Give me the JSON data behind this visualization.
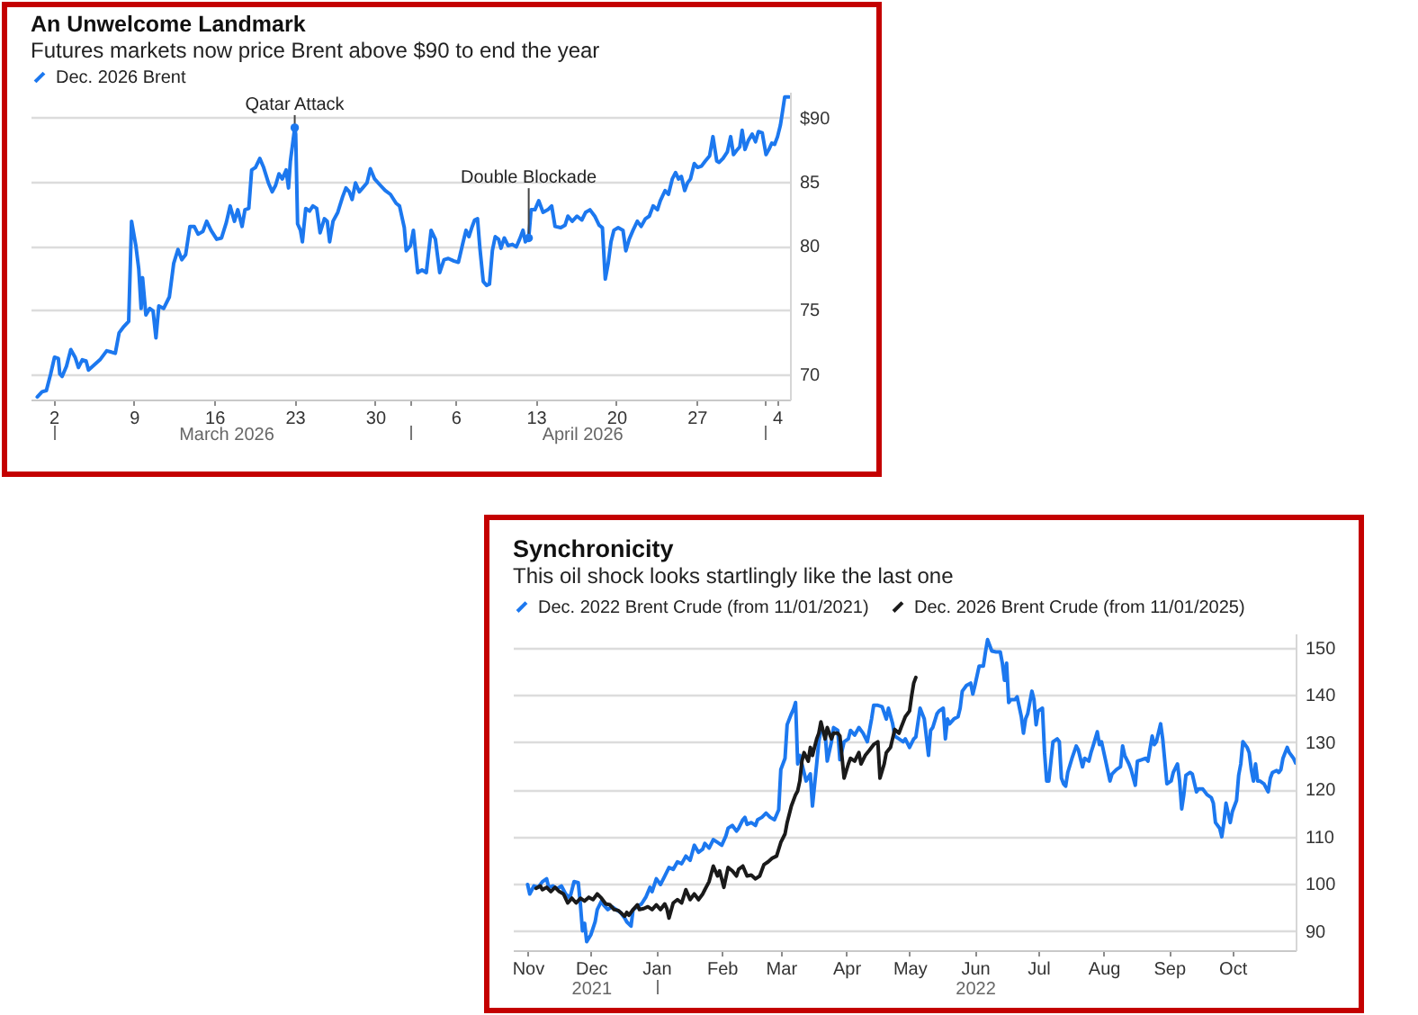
{
  "chart_data": [
    {
      "type": "line",
      "title": "An Unwelcome Landmark",
      "subtitle": "Futures markets now price Brent above $90 to end the year",
      "x": [
        "2026-02-28T14:00",
        "2026-03-01T00:00",
        "2026-03-01T09:00",
        "2026-03-01T18:00",
        "2026-03-02T02:00",
        "2026-03-02T10:00",
        "2026-03-02T13:00",
        "2026-03-02T18:00",
        "2026-03-03T03:00",
        "2026-03-03T12:00",
        "2026-03-03T21:00",
        "2026-03-04T04:00",
        "2026-03-04T12:00",
        "2026-03-04T20:00",
        "2026-03-05T01:00",
        "2026-03-05T13:00",
        "2026-03-06T01:00",
        "2026-03-06T15:00",
        "2026-03-07T01:00",
        "2026-03-07T09:00",
        "2026-03-07T17:00",
        "2026-03-08T03:00",
        "2026-03-08T13:00",
        "2026-03-08T19:00",
        "2026-03-09T04:00",
        "2026-03-09T10:00",
        "2026-03-09T15:00",
        "2026-03-09T18:00",
        "2026-03-10T01:00",
        "2026-03-10T09:00",
        "2026-03-10T16:00",
        "2026-03-10T22:00",
        "2026-03-11T04:00",
        "2026-03-11T14:00",
        "2026-03-12T02:00",
        "2026-03-12T11:00",
        "2026-03-12T20:00",
        "2026-03-13T04:00",
        "2026-03-13T12:00",
        "2026-03-13T21:00",
        "2026-03-14T06:00",
        "2026-03-14T14:00",
        "2026-03-15T00:00",
        "2026-03-15T08:00",
        "2026-03-15T17:00",
        "2026-03-16T05:00",
        "2026-03-16T15:00",
        "2026-03-17T01:00",
        "2026-03-17T09:00",
        "2026-03-17T18:00",
        "2026-03-18T01:00",
        "2026-03-18T10:00",
        "2026-03-18T16:00",
        "2026-03-19T00:00",
        "2026-03-19T06:00",
        "2026-03-19T14:00",
        "2026-03-19T23:00",
        "2026-03-20T07:00",
        "2026-03-20T17:00",
        "2026-03-21T01:00",
        "2026-03-21T08:00",
        "2026-03-21T15:00",
        "2026-03-21T22:00",
        "2026-03-22T06:00",
        "2026-03-22T11:00",
        "2026-03-22T15:00",
        "2026-03-23T00:00",
        "2026-03-23T02:00",
        "2026-03-23T06:00",
        "2026-03-23T12:00",
        "2026-03-23T16:00",
        "2026-03-23T23:00",
        "2026-03-24T07:00",
        "2026-03-24T14:00",
        "2026-03-24T22:00",
        "2026-03-25T05:00",
        "2026-03-25T14:00",
        "2026-03-25T20:00",
        "2026-03-26T01:00",
        "2026-03-26T08:00",
        "2026-03-26T18:00",
        "2026-03-27T04:00",
        "2026-03-27T11:00",
        "2026-03-27T18:00",
        "2026-03-28T00:00",
        "2026-03-28T07:00",
        "2026-03-28T15:00",
        "2026-03-28T22:00",
        "2026-03-29T07:00",
        "2026-03-29T14:00",
        "2026-03-29T23:00",
        "2026-03-30T11:00",
        "2026-03-30T21:00",
        "2026-03-31T08:00",
        "2026-03-31T20:00",
        "2026-04-01T03:00",
        "2026-04-01T13:00",
        "2026-04-01T17:00",
        "2026-04-02T02:00",
        "2026-04-02T08:00",
        "2026-04-02T17:00",
        "2026-04-03T02:00",
        "2026-04-03T11:00",
        "2026-04-03T21:00",
        "2026-04-04T06:00",
        "2026-04-04T15:00",
        "2026-04-05T00:00",
        "2026-04-05T09:00",
        "2026-04-05T21:00",
        "2026-04-06T06:00",
        "2026-04-06T16:00",
        "2026-04-06T22:00",
        "2026-04-07T04:00",
        "2026-04-07T10:00",
        "2026-04-07T16:00",
        "2026-04-07T22:00",
        "2026-04-08T03:00",
        "2026-04-08T10:00",
        "2026-04-08T17:00",
        "2026-04-08T23:00",
        "2026-04-09T05:00",
        "2026-04-09T11:00",
        "2026-04-09T18:00",
        "2026-04-09T23:00",
        "2026-04-10T06:00",
        "2026-04-10T14:00",
        "2026-04-10T23:00",
        "2026-04-11T07:00",
        "2026-04-11T14:00",
        "2026-04-11T21:00",
        "2026-04-12T02:00",
        "2026-04-12T09:00",
        "2026-04-12T14:00",
        "2026-04-12T22:00",
        "2026-04-13T06:00",
        "2026-04-13T15:00",
        "2026-04-14T01:00",
        "2026-04-14T09:00",
        "2026-04-14T16:00",
        "2026-04-15T04:00",
        "2026-04-15T13:00",
        "2026-04-15T19:00",
        "2026-04-16T04:00",
        "2026-04-16T14:00",
        "2026-04-17T00:00",
        "2026-04-17T08:00",
        "2026-04-17T17:00",
        "2026-04-18T03:00",
        "2026-04-18T12:00",
        "2026-04-18T19:00",
        "2026-04-19T01:00",
        "2026-04-19T07:00",
        "2026-04-19T13:00",
        "2026-04-19T19:00",
        "2026-04-20T04:00",
        "2026-04-20T14:00",
        "2026-04-20T20:00",
        "2026-04-21T03:00",
        "2026-04-21T11:00",
        "2026-04-21T20:00",
        "2026-04-22T04:00",
        "2026-04-22T13:00",
        "2026-04-22T21:00",
        "2026-04-23T05:00",
        "2026-04-23T14:00",
        "2026-04-23T20:00",
        "2026-04-24T06:00",
        "2026-04-24T13:00",
        "2026-04-24T21:00",
        "2026-04-25T04:00",
        "2026-04-25T10:00",
        "2026-04-25T16:00",
        "2026-04-25T23:00",
        "2026-04-26T05:00",
        "2026-04-26T11:00",
        "2026-04-26T19:00",
        "2026-04-27T02:00",
        "2026-04-27T10:00",
        "2026-04-27T18:00",
        "2026-04-28T03:00",
        "2026-04-28T10:00",
        "2026-04-28T18:00",
        "2026-04-28T23:00",
        "2026-04-29T07:00",
        "2026-04-29T16:00",
        "2026-04-29T23:00",
        "2026-04-30T05:00",
        "2026-04-30T11:00",
        "2026-04-30T18:00",
        "2026-04-30T23:00",
        "2026-05-01T05:00",
        "2026-05-01T12:00",
        "2026-05-01T20:00",
        "2026-05-02T03:00",
        "2026-05-02T09:00",
        "2026-05-02T17:00",
        "2026-05-03T01:00",
        "2026-05-03T07:00",
        "2026-05-03T13:00",
        "2026-05-03T19:00",
        "2026-05-04T01:00",
        "2026-05-04T07:00",
        "2026-05-04T12:00",
        "2026-05-04T16:00",
        "2026-05-05T01:00"
      ],
      "series": [
        {
          "name": "Dec. 2026 Brent",
          "color": "#1c78ef",
          "values": [
            68.2,
            68.6,
            68.7,
            70.0,
            71.3,
            71.2,
            70.0,
            69.8,
            70.6,
            71.9,
            71.3,
            70.5,
            71.1,
            71.0,
            70.3,
            70.7,
            71.1,
            71.8,
            71.7,
            71.6,
            73.2,
            73.7,
            74.1,
            81.9,
            80.0,
            78.2,
            75.1,
            77.5,
            74.6,
            75.1,
            74.9,
            72.8,
            75.3,
            75.1,
            76.0,
            78.6,
            79.7,
            78.9,
            79.3,
            81.5,
            81.5,
            80.9,
            81.1,
            81.9,
            81.2,
            80.5,
            80.6,
            81.8,
            83.1,
            81.9,
            82.8,
            81.5,
            82.8,
            82.9,
            85.9,
            86.1,
            86.8,
            86.1,
            84.9,
            84.2,
            84.7,
            85.6,
            85.2,
            85.9,
            84.5,
            86.6,
            89.2,
            88.7,
            81.7,
            81.2,
            80.3,
            82.9,
            82.7,
            83.1,
            82.9,
            81.0,
            82.1,
            81.9,
            80.3,
            81.9,
            82.6,
            83.8,
            84.5,
            84.2,
            83.6,
            84.9,
            84.2,
            84.5,
            84.9,
            86.0,
            85.2,
            84.7,
            84.3,
            84.0,
            83.3,
            83.1,
            81.4,
            79.6,
            80.0,
            81.2,
            77.9,
            78.1,
            77.9,
            81.2,
            80.5,
            77.9,
            78.9,
            79.0,
            78.8,
            78.7,
            80.3,
            81.2,
            80.7,
            81.4,
            82.0,
            82.1,
            79.8,
            77.2,
            76.9,
            77.0,
            79.6,
            80.7,
            80.5,
            79.8,
            80.6,
            80.0,
            80.1,
            79.9,
            80.5,
            81.2,
            80.3,
            80.6,
            82.8,
            82.8,
            83.5,
            82.6,
            82.8,
            83.1,
            81.5,
            81.4,
            81.6,
            82.3,
            81.9,
            82.3,
            82.0,
            82.6,
            82.8,
            82.3,
            81.6,
            81.4,
            77.4,
            78.6,
            80.3,
            81.2,
            81.4,
            81.2,
            79.6,
            80.5,
            81.2,
            81.9,
            81.5,
            82.1,
            82.3,
            83.1,
            82.8,
            83.5,
            84.3,
            84.0,
            85.2,
            85.7,
            85.2,
            85.4,
            84.3,
            84.9,
            85.2,
            86.4,
            86.1,
            86.2,
            86.6,
            87.0,
            88.5,
            86.6,
            86.5,
            86.8,
            87.3,
            88.5,
            87.1,
            87.4,
            87.7,
            89.0,
            87.5,
            88.2,
            88.7,
            88.1,
            88.9,
            88.8,
            87.1,
            87.5,
            88.0,
            87.9,
            88.5,
            89.4,
            90.6,
            91.6,
            91.6
          ]
        }
      ],
      "xlim": [
        "2026-02-28T00:00",
        "2026-05-05T03:00"
      ],
      "xticks": [
        {
          "value": "2026-03-02",
          "label": "2"
        },
        {
          "value": "2026-03-09",
          "label": "9"
        },
        {
          "value": "2026-03-16",
          "label": "16"
        },
        {
          "value": "2026-03-23",
          "label": "23"
        },
        {
          "value": "2026-03-30",
          "label": "30"
        },
        {
          "value": "2026-04-06",
          "label": "6"
        },
        {
          "value": "2026-04-13",
          "label": "13"
        },
        {
          "value": "2026-04-20",
          "label": "20"
        },
        {
          "value": "2026-04-27",
          "label": "27"
        },
        {
          "value": "2026-05-04",
          "label": "4"
        }
      ],
      "x2lim": [
        "2026-02-28T00:00",
        "2026-05-05T03:00"
      ],
      "x2ticks": [
        {
          "value": "2026-03-02",
          "label": null
        },
        {
          "value": "2026-03-17",
          "label": "March 2026"
        },
        {
          "value": "2026-04-02",
          "label": null
        },
        {
          "value": "2026-04-17",
          "label": "April 2026"
        },
        {
          "value": "2026-05-03",
          "label": null
        }
      ],
      "ylim": [
        68,
        92
      ],
      "yticks": [
        70,
        75,
        80,
        85,
        {
          "value": 90,
          "label": "$90"
        }
      ],
      "grid": "y",
      "legend": "top left",
      "annotations": [
        {
          "text": "Qatar Attack",
          "x": "2026-03-23T00:00",
          "y": 89.2
        },
        {
          "text": "Double Blockade",
          "x": "2026-04-12T09:00",
          "y": 80.6
        }
      ]
    },
    {
      "type": "line",
      "title": "Synchronicity",
      "subtitle": "This oil shock looks startlingly like the last one",
      "series": [
        {
          "name": "Dec. 2022 Brent Crude (from 11/01/2021)",
          "color": "#1c78ef",
          "x": [
            "2021-11-01",
            "2021-11-02",
            "2021-11-04",
            "2021-11-06",
            "2021-11-08",
            "2021-11-10",
            "2021-11-11",
            "2021-11-13",
            "2021-11-15",
            "2021-11-17",
            "2021-11-19",
            "2021-11-21",
            "2021-11-23",
            "2021-11-25",
            "2021-11-26",
            "2021-11-27",
            "2021-11-28",
            "2021-11-29",
            "2021-12-01",
            "2021-12-03",
            "2021-12-04",
            "2021-12-06",
            "2021-12-07",
            "2021-12-09",
            "2021-12-11",
            "2021-12-13",
            "2021-12-15",
            "2021-12-17",
            "2021-12-18",
            "2021-12-20",
            "2021-12-21",
            "2021-12-23",
            "2021-12-25",
            "2021-12-27",
            "2021-12-29",
            "2021-12-30",
            "2022-01-01",
            "2022-01-03",
            "2022-01-05",
            "2022-01-07",
            "2022-01-09",
            "2022-01-11",
            "2022-01-13",
            "2022-01-15",
            "2022-01-17",
            "2022-01-19",
            "2022-01-21",
            "2022-01-23",
            "2022-01-24",
            "2022-01-26",
            "2022-01-28",
            "2022-01-30",
            "2022-02-01",
            "2022-02-03",
            "2022-02-04",
            "2022-02-06",
            "2022-02-08",
            "2022-02-09",
            "2022-02-11",
            "2022-02-12",
            "2022-02-13",
            "2022-02-15",
            "2022-02-17",
            "2022-02-18",
            "2022-02-20",
            "2022-02-22",
            "2022-02-24",
            "2022-02-26",
            "2022-02-28",
            "2022-03-01",
            "2022-03-03",
            "2022-03-04",
            "2022-03-06",
            "2022-03-07",
            "2022-03-08",
            "2022-03-09",
            "2022-03-10",
            "2022-03-12",
            "2022-03-13",
            "2022-03-15",
            "2022-03-16",
            "2022-03-18",
            "2022-03-19",
            "2022-03-20",
            "2022-03-22",
            "2022-03-23",
            "2022-03-25",
            "2022-03-26",
            "2022-03-28",
            "2022-03-29",
            "2022-03-31",
            "2022-04-02",
            "2022-04-03",
            "2022-04-05",
            "2022-04-07",
            "2022-04-09",
            "2022-04-11",
            "2022-04-13",
            "2022-04-14",
            "2022-04-16",
            "2022-04-18",
            "2022-04-20",
            "2022-04-21",
            "2022-04-23",
            "2022-04-24",
            "2022-04-26",
            "2022-04-28",
            "2022-04-29",
            "2022-05-01",
            "2022-05-03",
            "2022-05-04",
            "2022-05-06",
            "2022-05-08",
            "2022-05-09",
            "2022-05-10",
            "2022-05-11",
            "2022-05-12",
            "2022-05-14",
            "2022-05-15",
            "2022-05-17",
            "2022-05-18",
            "2022-05-19",
            "2022-05-20",
            "2022-05-22",
            "2022-05-24",
            "2022-05-25",
            "2022-05-26",
            "2022-05-28",
            "2022-05-30",
            "2022-05-31",
            "2022-06-01",
            "2022-06-03",
            "2022-06-05",
            "2022-06-06",
            "2022-06-07",
            "2022-06-09",
            "2022-06-11",
            "2022-06-13",
            "2022-06-14",
            "2022-06-15",
            "2022-06-16",
            "2022-06-17",
            "2022-06-18",
            "2022-06-20",
            "2022-06-21",
            "2022-06-23",
            "2022-06-24",
            "2022-06-25",
            "2022-06-26",
            "2022-06-28",
            "2022-06-29",
            "2022-06-30",
            "2022-07-01",
            "2022-07-03",
            "2022-07-04",
            "2022-07-05",
            "2022-07-06",
            "2022-07-08",
            "2022-07-10",
            "2022-07-11",
            "2022-07-12",
            "2022-07-13",
            "2022-07-14",
            "2022-07-15",
            "2022-07-17",
            "2022-07-19",
            "2022-07-20",
            "2022-07-22",
            "2022-07-23",
            "2022-07-25",
            "2022-07-26",
            "2022-07-27",
            "2022-07-29",
            "2022-07-30",
            "2022-07-31",
            "2022-08-02",
            "2022-08-04",
            "2022-08-05",
            "2022-08-07",
            "2022-08-09",
            "2022-08-10",
            "2022-08-11",
            "2022-08-13",
            "2022-08-14",
            "2022-08-16",
            "2022-08-17",
            "2022-08-19",
            "2022-08-21",
            "2022-08-22",
            "2022-08-24",
            "2022-08-25",
            "2022-08-26",
            "2022-08-28",
            "2022-08-29",
            "2022-08-31",
            "2022-09-02",
            "2022-09-03",
            "2022-09-05",
            "2022-09-06",
            "2022-09-07",
            "2022-09-08",
            "2022-09-09",
            "2022-09-11",
            "2022-09-12",
            "2022-09-14",
            "2022-09-15",
            "2022-09-17",
            "2022-09-19",
            "2022-09-21",
            "2022-09-22",
            "2022-09-23",
            "2022-09-25",
            "2022-09-26",
            "2022-09-27",
            "2022-09-28",
            "2022-09-30",
            "2022-10-01",
            "2022-10-03",
            "2022-10-04",
            "2022-10-05",
            "2022-10-06",
            "2022-10-08",
            "2022-10-09",
            "2022-10-10",
            "2022-10-11",
            "2022-10-12",
            "2022-10-13",
            "2022-10-14",
            "2022-10-16",
            "2022-10-18",
            "2022-10-19",
            "2022-10-20",
            "2022-10-22",
            "2022-10-23",
            "2022-10-24",
            "2022-10-25",
            "2022-10-27",
            "2022-10-28",
            "2022-10-30",
            "2022-10-31"
          ],
          "values": [
            99.9,
            97.9,
            99.6,
            99.3,
            100.5,
            101.1,
            99.3,
            99.6,
            99.0,
            99.6,
            97.9,
            97.0,
            100.5,
            100.3,
            95.8,
            90.1,
            91.7,
            87.8,
            89.3,
            92.0,
            94.6,
            96.4,
            95.6,
            94.6,
            95.2,
            94.6,
            94.0,
            92.8,
            92.0,
            91.1,
            94.6,
            95.2,
            95.8,
            97.2,
            99.3,
            98.4,
            101.1,
            99.9,
            101.7,
            103.5,
            103.1,
            104.7,
            104.3,
            105.9,
            105.0,
            108.2,
            106.7,
            107.4,
            108.6,
            107.6,
            109.4,
            108.8,
            108.2,
            110.2,
            111.8,
            112.4,
            111.2,
            111.8,
            113.6,
            114.1,
            112.6,
            113.0,
            112.4,
            113.6,
            114.1,
            115.0,
            114.1,
            113.6,
            115.7,
            124.2,
            126.6,
            133.7,
            136.0,
            137.0,
            138.4,
            125.4,
            127.2,
            123.6,
            121.8,
            123.3,
            116.5,
            125.4,
            130.1,
            132.5,
            131.9,
            126.0,
            130.1,
            133.1,
            132.5,
            126.3,
            130.1,
            130.7,
            132.5,
            131.5,
            133.1,
            131.9,
            130.1,
            134.9,
            137.8,
            137.8,
            137.5,
            134.9,
            137.2,
            133.9,
            131.3,
            130.7,
            130.1,
            130.7,
            128.9,
            130.7,
            131.1,
            137.2,
            134.9,
            131.1,
            127.2,
            132.5,
            133.1,
            136.0,
            136.6,
            137.2,
            130.7,
            134.9,
            133.9,
            134.9,
            135.4,
            137.2,
            140.8,
            142.0,
            142.5,
            140.2,
            142.0,
            146.1,
            146.1,
            149.1,
            151.7,
            149.3,
            149.1,
            149.1,
            146.7,
            143.1,
            146.7,
            138.4,
            139.0,
            139.0,
            139.6,
            135.4,
            131.9,
            134.9,
            136.0,
            140.8,
            139.0,
            133.7,
            136.6,
            137.2,
            127.8,
            121.8,
            121.8,
            130.1,
            130.7,
            130.1,
            122.4,
            121.2,
            120.7,
            123.6,
            126.6,
            129.2,
            128.4,
            124.8,
            126.6,
            126.0,
            127.8,
            129.2,
            132.2,
            129.5,
            130.1,
            126.0,
            121.8,
            123.3,
            124.2,
            124.8,
            129.2,
            127.2,
            125.4,
            124.2,
            120.9,
            126.0,
            126.3,
            126.6,
            126.0,
            131.3,
            129.5,
            130.1,
            133.9,
            130.7,
            121.2,
            121.8,
            123.6,
            125.4,
            121.8,
            115.9,
            118.9,
            123.0,
            123.6,
            123.3,
            119.5,
            120.1,
            120.1,
            118.9,
            118.3,
            117.1,
            113.0,
            111.8,
            110.0,
            113.0,
            117.1,
            113.0,
            115.3,
            117.7,
            123.0,
            125.4,
            130.1,
            128.9,
            127.8,
            124.2,
            121.8,
            125.4,
            121.8,
            121.8,
            121.2,
            119.5,
            122.4,
            123.6,
            124.0,
            123.6,
            124.2,
            126.6,
            128.9,
            127.8,
            126.6,
            125.6
          ]
        },
        {
          "name": "Dec. 2026 Brent Crude (from 11/01/2025)",
          "color": "#1a1a1a",
          "x": [
            "2021-11-05",
            "2021-11-07",
            "2021-11-08",
            "2021-11-10",
            "2021-11-12",
            "2021-11-14",
            "2021-11-16",
            "2021-11-18",
            "2021-11-20",
            "2021-11-22",
            "2021-11-24",
            "2021-11-26",
            "2021-11-28",
            "2021-11-30",
            "2021-12-02",
            "2021-12-04",
            "2021-12-06",
            "2021-12-08",
            "2021-12-10",
            "2021-12-12",
            "2021-12-14",
            "2021-12-17",
            "2021-12-18",
            "2021-12-19",
            "2021-12-21",
            "2021-12-23",
            "2021-12-24",
            "2021-12-26",
            "2021-12-28",
            "2021-12-30",
            "2022-01-01",
            "2022-01-03",
            "2022-01-05",
            "2022-01-06",
            "2022-01-07",
            "2022-01-09",
            "2022-01-11",
            "2022-01-13",
            "2022-01-15",
            "2022-01-17",
            "2022-01-19",
            "2022-01-21",
            "2022-01-23",
            "2022-01-24",
            "2022-01-26",
            "2022-01-28",
            "2022-01-30",
            "2022-01-31",
            "2022-02-02",
            "2022-02-04",
            "2022-02-06",
            "2022-02-08",
            "2022-02-09",
            "2022-02-11",
            "2022-02-13",
            "2022-02-15",
            "2022-02-17",
            "2022-02-19",
            "2022-02-21",
            "2022-02-23",
            "2022-02-25",
            "2022-02-27",
            "2022-03-01",
            "2022-03-03",
            "2022-03-04",
            "2022-03-06",
            "2022-03-08",
            "2022-03-09",
            "2022-03-10",
            "2022-03-11",
            "2022-03-12",
            "2022-03-14",
            "2022-03-15",
            "2022-03-16",
            "2022-03-18",
            "2022-03-19",
            "2022-03-20",
            "2022-03-22",
            "2022-03-23",
            "2022-03-25",
            "2022-03-26",
            "2022-03-28",
            "2022-03-29",
            "2022-03-31",
            "2022-04-02",
            "2022-04-03",
            "2022-04-05",
            "2022-04-07",
            "2022-04-08",
            "2022-04-10",
            "2022-04-12",
            "2022-04-14",
            "2022-04-16",
            "2022-04-17",
            "2022-04-19",
            "2022-04-20",
            "2022-04-22",
            "2022-04-24",
            "2022-04-26",
            "2022-04-27",
            "2022-04-29",
            "2022-05-01",
            "2022-05-02",
            "2022-05-03",
            "2022-05-04"
          ],
          "values": [
            99.1,
            99.6,
            98.8,
            99.3,
            98.4,
            99.3,
            98.4,
            97.9,
            96.0,
            97.0,
            96.0,
            97.0,
            96.4,
            97.2,
            96.7,
            97.9,
            97.0,
            95.8,
            95.6,
            94.6,
            94.4,
            93.2,
            94.0,
            93.4,
            94.6,
            95.6,
            94.6,
            94.8,
            95.2,
            94.6,
            95.6,
            94.6,
            95.8,
            94.8,
            92.8,
            96.0,
            96.7,
            96.0,
            98.8,
            96.7,
            97.9,
            96.7,
            97.9,
            98.8,
            100.5,
            103.8,
            101.7,
            102.8,
            99.3,
            103.5,
            102.8,
            101.7,
            103.1,
            103.8,
            101.7,
            101.9,
            101.1,
            101.7,
            104.1,
            104.7,
            105.5,
            105.9,
            108.8,
            110.6,
            113.0,
            116.5,
            118.9,
            119.7,
            121.8,
            126.0,
            127.8,
            126.0,
            128.9,
            127.2,
            130.7,
            131.9,
            134.3,
            130.7,
            133.1,
            130.7,
            131.9,
            131.9,
            131.3,
            122.4,
            125.4,
            126.6,
            126.0,
            127.8,
            125.4,
            127.2,
            128.3,
            129.5,
            130.1,
            122.4,
            125.4,
            127.8,
            128.9,
            132.7,
            131.9,
            133.1,
            135.4,
            136.6,
            139.8,
            142.5,
            143.7
          ]
        }
      ],
      "xlim": [
        "2021-10-25",
        "2022-10-31"
      ],
      "xticks": [
        {
          "value": "2021-11-01",
          "label": "Nov"
        },
        {
          "value": "2021-12-01",
          "label": "Dec"
        },
        {
          "value": "2022-01-01",
          "label": "Jan"
        },
        {
          "value": "2022-02-01",
          "label": "Feb"
        },
        {
          "value": "2022-03-01",
          "label": "Mar"
        },
        {
          "value": "2022-04-01",
          "label": "Apr"
        },
        {
          "value": "2022-05-01",
          "label": "May"
        },
        {
          "value": "2022-06-01",
          "label": "Jun"
        },
        {
          "value": "2022-07-01",
          "label": "Jul"
        },
        {
          "value": "2022-08-01",
          "label": "Aug"
        },
        {
          "value": "2022-09-01",
          "label": "Sep"
        },
        {
          "value": "2022-10-01",
          "label": "Oct"
        }
      ],
      "x2lim": [
        "2021-10-25",
        "2022-10-31"
      ],
      "x2ticks": [
        {
          "value": "2021-12-01",
          "label": "2021"
        },
        {
          "value": "2022-01-01",
          "label": null
        },
        {
          "value": "2022-06-01",
          "label": "2022"
        }
      ],
      "ylim": [
        86,
        153
      ],
      "yticks": [
        90,
        100,
        110,
        120,
        130,
        140,
        150
      ],
      "grid": "y",
      "legend": "top left"
    }
  ]
}
